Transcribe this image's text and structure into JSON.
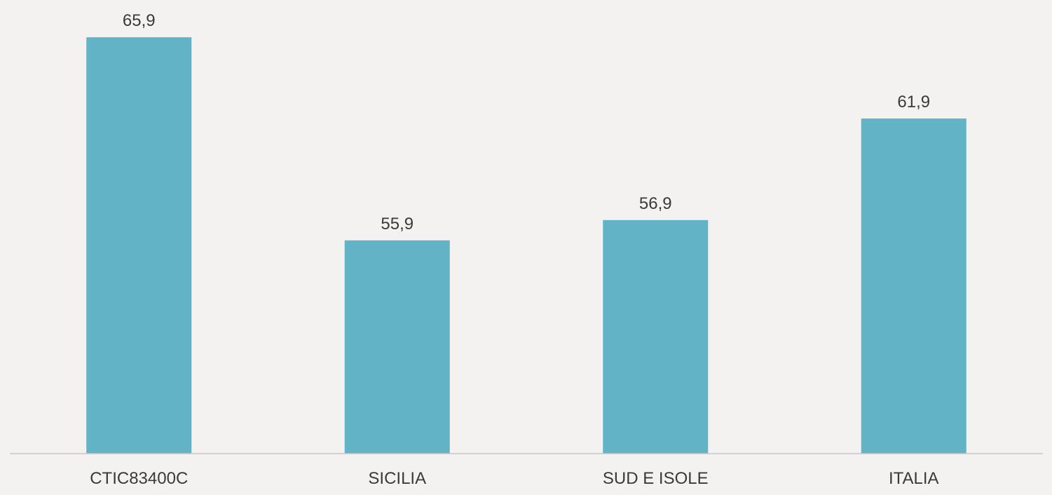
{
  "chart_data": {
    "type": "bar",
    "title": "",
    "xlabel": "",
    "ylabel": "",
    "categories": [
      "CTIC83400C",
      "SICILIA",
      "SUD E ISOLE",
      "ITALIA"
    ],
    "values": [
      65.9,
      55.9,
      56.9,
      61.9
    ],
    "value_labels": [
      "65,9",
      "55,9",
      "56,9",
      "61,9"
    ],
    "ylim": [
      45.4,
      66.7
    ],
    "grid": false,
    "legend": "none",
    "bar_color": "#63b3c6",
    "axis_color": "#c8c8c8",
    "background": "#f3f2f0"
  }
}
